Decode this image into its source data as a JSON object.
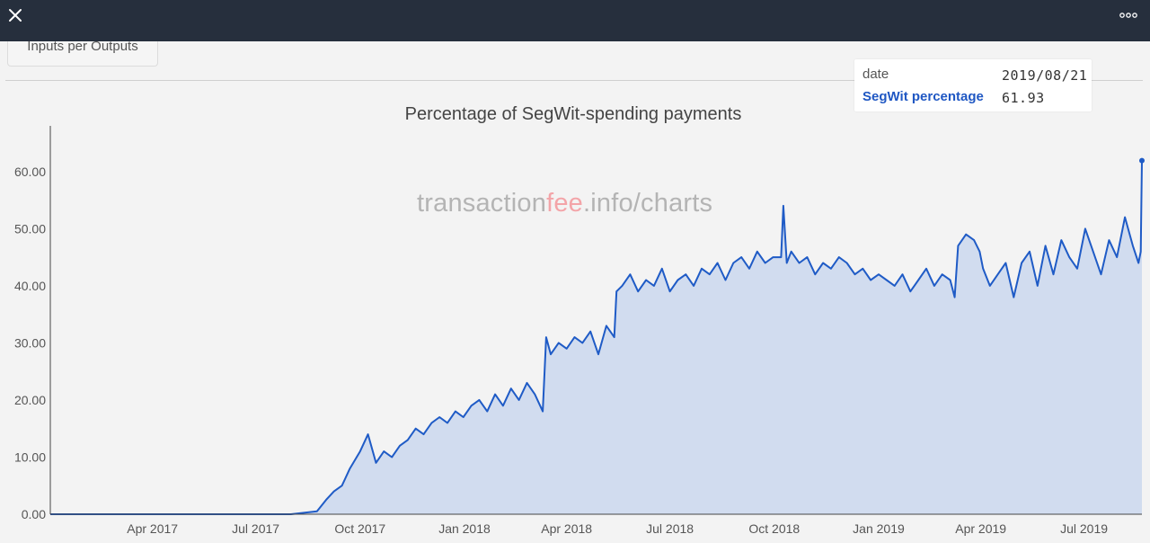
{
  "toolbar": {
    "close_icon": "close-icon",
    "more_icon": "more-dots-icon",
    "bar_color": "#262f3d"
  },
  "tab": {
    "label": "Inputs per Outputs"
  },
  "tooltip": {
    "date_label": "date",
    "date_value": "2019/08/21",
    "series_label": "SegWit percentage",
    "series_value": "61.93"
  },
  "watermark": {
    "pre": "transaction",
    "mid": "fee",
    "post": ".info/charts"
  },
  "chart_data": {
    "type": "area",
    "title": "Percentage of SegWit-spending payments",
    "xlabel": "",
    "ylabel": "",
    "x_range": [
      "2017-01-01",
      "2019-08-21"
    ],
    "ylim": [
      0,
      68
    ],
    "y_ticks": [
      0,
      10,
      20,
      30,
      40,
      50,
      60
    ],
    "y_tick_labels": [
      "0.00",
      "10.00",
      "20.00",
      "30.00",
      "40.00",
      "50.00",
      "60.00"
    ],
    "x_ticks": [
      "2017-04-01",
      "2017-07-01",
      "2017-10-01",
      "2018-01-01",
      "2018-04-01",
      "2018-07-01",
      "2018-10-01",
      "2019-01-01",
      "2019-04-01",
      "2019-07-01"
    ],
    "x_tick_labels": [
      "Apr 2017",
      "Jul 2017",
      "Oct 2017",
      "Jan 2018",
      "Apr 2018",
      "Jul 2018",
      "Oct 2018",
      "Jan 2019",
      "Apr 2019",
      "Jul 2019"
    ],
    "line_color": "#1f5bc6",
    "fill_color": "#d1dcef",
    "series": [
      {
        "x": [
          "2017-01-01",
          "2017-08-01",
          "2017-08-24",
          "2017-09-01",
          "2017-09-08",
          "2017-09-15",
          "2017-09-22",
          "2017-10-01",
          "2017-10-08",
          "2017-10-15",
          "2017-10-22",
          "2017-10-29",
          "2017-11-05",
          "2017-11-12",
          "2017-11-19",
          "2017-11-26",
          "2017-12-03",
          "2017-12-10",
          "2017-12-17",
          "2017-12-24",
          "2017-12-31",
          "2018-01-07",
          "2018-01-14",
          "2018-01-21",
          "2018-01-28",
          "2018-02-04",
          "2018-02-11",
          "2018-02-18",
          "2018-02-25",
          "2018-03-04",
          "2018-03-11",
          "2018-03-14",
          "2018-03-18",
          "2018-03-25",
          "2018-04-01",
          "2018-04-08",
          "2018-04-15",
          "2018-04-22",
          "2018-04-29",
          "2018-05-06",
          "2018-05-13",
          "2018-05-15",
          "2018-05-20",
          "2018-05-27",
          "2018-06-03",
          "2018-06-10",
          "2018-06-17",
          "2018-06-24",
          "2018-07-01",
          "2018-07-08",
          "2018-07-15",
          "2018-07-22",
          "2018-07-29",
          "2018-08-05",
          "2018-08-12",
          "2018-08-19",
          "2018-08-26",
          "2018-09-02",
          "2018-09-09",
          "2018-09-16",
          "2018-09-23",
          "2018-09-30",
          "2018-10-07",
          "2018-10-09",
          "2018-10-12",
          "2018-10-16",
          "2018-10-23",
          "2018-10-30",
          "2018-11-06",
          "2018-11-13",
          "2018-11-20",
          "2018-11-27",
          "2018-12-04",
          "2018-12-11",
          "2018-12-18",
          "2018-12-25",
          "2019-01-01",
          "2019-01-08",
          "2019-01-15",
          "2019-01-22",
          "2019-01-29",
          "2019-02-05",
          "2019-02-12",
          "2019-02-19",
          "2019-02-26",
          "2019-03-05",
          "2019-03-09",
          "2019-03-12",
          "2019-03-19",
          "2019-03-26",
          "2019-03-31",
          "2019-04-03",
          "2019-04-09",
          "2019-04-16",
          "2019-04-23",
          "2019-04-30",
          "2019-05-07",
          "2019-05-14",
          "2019-05-21",
          "2019-05-28",
          "2019-06-04",
          "2019-06-11",
          "2019-06-18",
          "2019-06-25",
          "2019-07-02",
          "2019-07-09",
          "2019-07-16",
          "2019-07-23",
          "2019-07-30",
          "2019-08-06",
          "2019-08-13",
          "2019-08-18",
          "2019-08-20",
          "2019-08-21"
        ],
        "values": [
          0,
          0,
          0.5,
          2.5,
          4,
          5,
          8,
          11,
          14,
          9,
          11,
          10,
          12,
          13,
          15,
          14,
          16,
          17,
          16,
          18,
          17,
          19,
          20,
          18,
          21,
          19,
          22,
          20,
          23,
          21,
          18,
          31,
          28,
          30,
          29,
          31,
          30,
          32,
          28,
          33,
          31,
          39,
          40,
          42,
          39,
          41,
          40,
          43,
          39,
          41,
          42,
          40,
          43,
          42,
          44,
          41,
          44,
          45,
          43,
          46,
          44,
          45,
          45,
          54,
          44,
          46,
          44,
          45,
          42,
          44,
          43,
          45,
          44,
          42,
          43,
          41,
          42,
          41,
          40,
          42,
          39,
          41,
          43,
          40,
          42,
          41,
          38,
          47,
          49,
          48,
          46,
          43,
          40,
          42,
          44,
          38,
          44,
          46,
          40,
          47,
          42,
          48,
          45,
          43,
          50,
          46,
          42,
          48,
          45,
          52,
          47,
          44,
          46,
          61.93
        ]
      }
    ]
  }
}
